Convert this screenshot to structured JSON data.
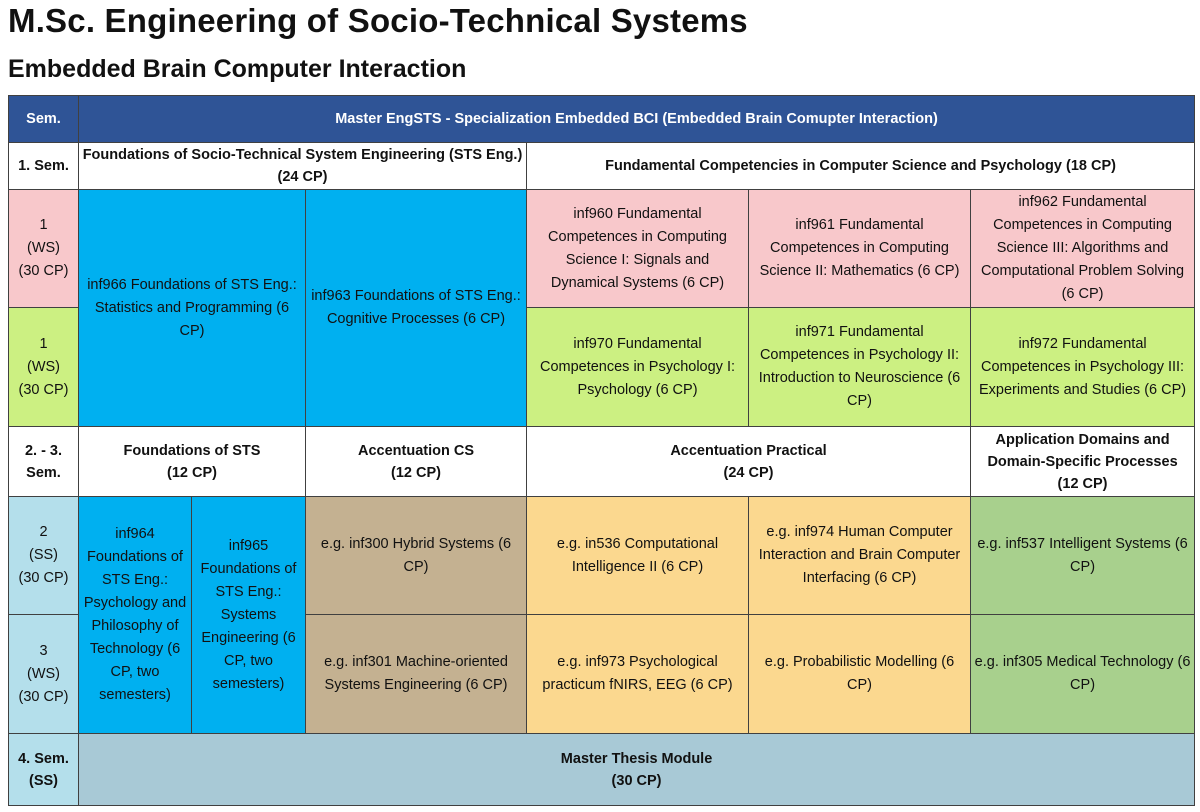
{
  "title": "M.Sc. Engineering of Socio-Technical Systems",
  "subtitle": "Embedded Brain Computer Interaction",
  "table": {
    "header": {
      "sem": "Sem.",
      "program": "Master EngSTS - Specialization Embedded BCI (Embedded Brain Comupter Interaction)"
    },
    "sem1": {
      "label": "1. Sem.",
      "foundations_title": "Foundations of Socio-Technical System Engineering (STS Eng.) (24 CP)",
      "fundamental_title": "Fundamental Competencies in Computer Science and Psychology (18 CP)"
    },
    "row_ws1a": {
      "label_num": "1",
      "label_term": "(WS)",
      "label_cp": "(30 CP)",
      "inf966": "inf966 Foundations of STS Eng.: Statistics and Programming (6 CP)",
      "inf963": "inf963 Foundations of STS Eng.: Cognitive Processes (6 CP)",
      "inf960": "inf960 Fundamental Competences in Computing Science I: Signals and Dynamical Systems (6 CP)",
      "inf961": "inf961 Fundamental Competences in Computing Science II: Mathematics (6 CP)",
      "inf962": "inf962 Fundamental Competences in Computing Science III: Algorithms and Computational Problem Solving (6 CP)"
    },
    "row_ws1b": {
      "label_num": "1",
      "label_term": "(WS)",
      "label_cp": "(30 CP)",
      "inf970": "inf970 Fundamental Competences in Psychology I: Psychology (6 CP)",
      "inf971": "inf971 Fundamental Competences in Psychology II: Introduction to Neuroscience (6 CP)",
      "inf972": "inf972 Fundamental Competences in Psychology III: Experiments and Studies (6 CP)"
    },
    "sem23": {
      "label_a": "2. - 3.",
      "label_b": "Sem.",
      "foundations_sts": "Foundations of STS",
      "foundations_sts_cp": "(12 CP)",
      "accent_cs": "Accentuation CS",
      "accent_cs_cp": "(12 CP)",
      "accent_practical": "Accentuation Practical",
      "accent_practical_cp": "(24 CP)",
      "app_domains": "Application Domains and Domain-Specific Processes",
      "app_domains_cp": "(12 CP)"
    },
    "row_ss2": {
      "label_num": "2",
      "label_term": "(SS)",
      "label_cp": "(30 CP)",
      "inf964": "inf964 Foundations of STS Eng.: Psychology and Philosophy of Technology (6 CP, two semesters)",
      "inf965": "inf965 Foundations of STS Eng.: Systems Engineering (6 CP, two semesters)",
      "inf300": "e.g. inf300 Hybrid Systems (6 CP)",
      "in536": "e.g. in536 Computational Intelligence II (6 CP)",
      "inf974": "e.g. inf974 Human Computer Interaction and Brain Computer Interfacing (6 CP)",
      "inf537": "e.g. inf537 Intelligent Systems (6 CP)"
    },
    "row_ws3": {
      "label_num": "3",
      "label_term": "(WS)",
      "label_cp": "(30 CP)",
      "inf301": "e.g. inf301 Machine-oriented Systems Engineering (6 CP)",
      "inf973": "e.g. inf973 Psychological practicum fNIRS, EEG (6 CP)",
      "probabilistic": "e.g. Probabilistic Modelling (6 CP)",
      "inf305": "e.g. inf305 Medical Technology (6 CP)"
    },
    "sem4": {
      "label_a": "4. Sem.",
      "label_b": "(SS)",
      "thesis": "Master Thesis Module",
      "thesis_cp": "(30 CP)"
    }
  },
  "colors": {
    "header": "#2f5496",
    "pink": "#f8c8cb",
    "light_green": "#ccf082",
    "blue": "#00b0f0",
    "light_blue": "#b4dfeb",
    "tan": "#c4b191",
    "peach": "#fbd88f",
    "medium_green": "#a8d08d",
    "thesis": "#a8c9d6"
  }
}
